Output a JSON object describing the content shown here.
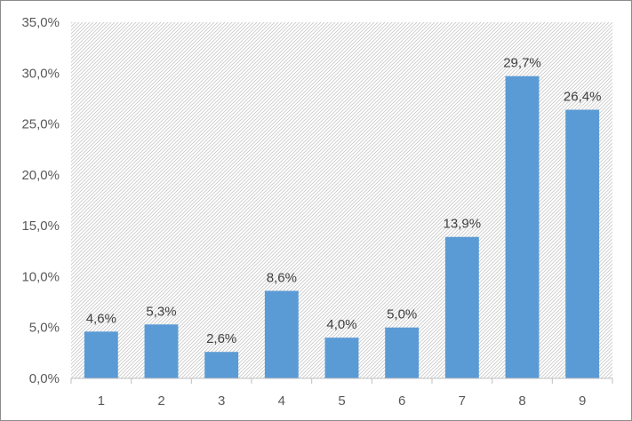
{
  "chart_data": {
    "type": "bar",
    "categories": [
      "1",
      "2",
      "3",
      "4",
      "5",
      "6",
      "7",
      "8",
      "9"
    ],
    "values": [
      4.6,
      5.3,
      2.6,
      8.6,
      4.0,
      5.0,
      13.9,
      29.7,
      26.4
    ],
    "data_labels": [
      "4,6%",
      "5,3%",
      "2,6%",
      "8,6%",
      "4,0%",
      "5,0%",
      "13,9%",
      "29,7%",
      "26,4%"
    ],
    "y_ticks": [
      0,
      5,
      10,
      15,
      20,
      25,
      30,
      35
    ],
    "y_tick_labels": [
      "0,0%",
      "5,0%",
      "10,0%",
      "15,0%",
      "20,0%",
      "25,0%",
      "30,0%",
      "35,0%"
    ],
    "ylim": [
      0,
      35
    ],
    "title": "",
    "xlabel": "",
    "ylabel": "",
    "grid": false,
    "legend": "none",
    "plot_background": "hatched",
    "bar_color": "#5b9bd5",
    "axis_color": "#bfbfbf"
  }
}
